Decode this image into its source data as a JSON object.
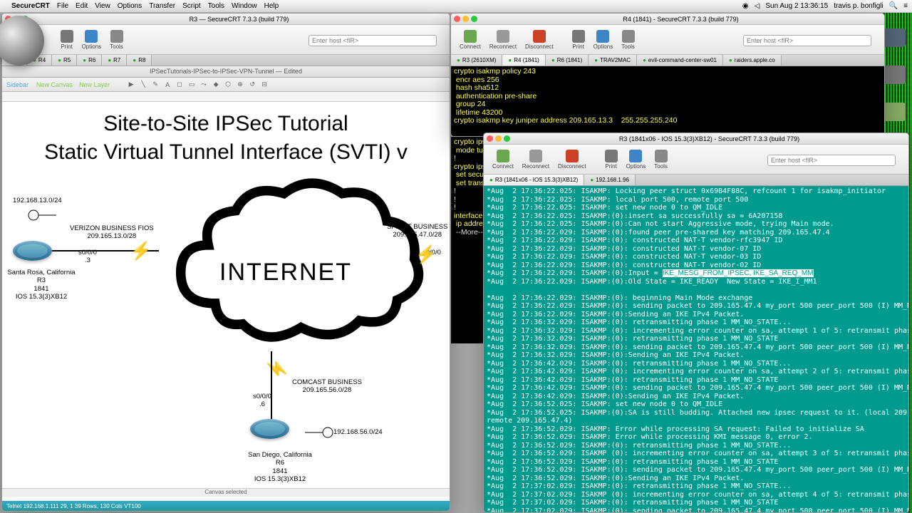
{
  "menubar": {
    "app": "SecureCRT",
    "items": [
      "File",
      "Edit",
      "View",
      "Options",
      "Transfer",
      "Script",
      "Tools",
      "Window",
      "Help"
    ],
    "clock": "Sun Aug 2  13:36:15",
    "user": "travis p. bonfigli"
  },
  "topterm": {
    "title": "R4 (1841) - SecureCRT 7.3.3 (build 779)",
    "toolbar": [
      "Connect",
      "Reconnect",
      "Disconnect",
      "Print",
      "Options",
      "Tools"
    ],
    "host_ph": "Enter host <ﬂR>",
    "tabs": [
      "R3 (2610XM)",
      "R4 (1841)",
      "R6 (1841)",
      "TRAV2MAC",
      "evil-command-center-sw01",
      "raiders.apple.co"
    ],
    "lines": [
      "crypto isakmp policy 243",
      " encr aes 256",
      " hash sha512",
      " authentication pre-share",
      " group 24",
      " lifetime 43200",
      "crypto isakmp key juniper address 209.165.13.3    255.255.255.240"
    ],
    "more": [
      "crypto ipsec transform-set R4_TSET esp-aes 256 esp-sha5",
      " mode tunnel",
      "!",
      "crypto ipsec profile R4_IPSEC_PROFILE",
      " set security-association lifetime seconds 1800",
      " set transform-set R4_TSET",
      "!",
      "!",
      "!",
      "interface Tunnel0",
      " ip address 10.10.10.2 255.255.255.0",
      " --More--"
    ]
  },
  "midterm": {
    "title": "R3 (1841x06 - IOS 15.3(3)XB12) - SecureCRT 7.3.3 (build 779)",
    "toolbar": [
      "Connect",
      "Reconnect",
      "Disconnect",
      "Print",
      "Options",
      "Tools"
    ],
    "host_ph": "Enter host <ﬂR>",
    "tabs": [
      "R3 (1841x06 - IOS 15.3(3)XB12)",
      "192.168.1.96"
    ],
    "log": [
      "*Aug  2 17:36:22.025: ISAKMP: Locking peer struct 0x69B4F88C, refcount 1 for isakmp_initiator",
      "*Aug  2 17:36:22.025: ISAKMP: local port 500, remote port 500",
      "*Aug  2 17:36:22.025: ISAKMP: set new node 0 to QM_IDLE",
      "*Aug  2 17:36:22.025: ISAKMP:(0):insert sa successfully sa = 6A207158",
      "*Aug  2 17:36:22.025: ISAKMP:(0):Can not start Aggressive mode, trying Main mode.",
      "*Aug  2 17:36:22.029: ISAKMP:(0):found peer pre-shared key matching 209.165.47.4",
      "*Aug  2 17:36:22.029: ISAKMP:(0): constructed NAT-T vendor-rfc3947 ID",
      "*Aug  2 17:36:22.029: ISAKMP:(0): constructed NAT-T vendor-07 ID",
      "*Aug  2 17:36:22.029: ISAKMP:(0): constructed NAT-T vendor-03 ID",
      "*Aug  2 17:36:22.029: ISAKMP:(0): constructed NAT-T vendor-02 ID",
      "*Aug  2 17:36:22.029: ISAKMP:(0):Input = ",
      "*Aug  2 17:36:22.029: ISAKMP:(0):Old State = IKE_READY  New State = IKE_I_MM1",
      "",
      "*Aug  2 17:36:22.029: ISAKMP:(0): beginning Main Mode exchange",
      "*Aug  2 17:36:22.029: ISAKMP:(0): sending packet to 209.165.47.4 my_port 500 peer_port 500 (I) MM_NO_STATE",
      "*Aug  2 17:36:22.029: ISAKMP:(0):Sending an IKE IPv4 Packet.",
      "*Aug  2 17:36:32.029: ISAKMP:(0): retransmitting phase 1 MM_NO_STATE...",
      "*Aug  2 17:36:32.029: ISAKMP (0): incrementing error counter on sa, attempt 1 of 5: retransmit phase 1",
      "*Aug  2 17:36:32.029: ISAKMP:(0): retransmitting phase 1 MM_NO_STATE",
      "*Aug  2 17:36:32.029: ISAKMP:(0): sending packet to 209.165.47.4 my_port 500 peer_port 500 (I) MM_NO_STATE",
      "*Aug  2 17:36:32.029: ISAKMP:(0):Sending an IKE IPv4 Packet.",
      "*Aug  2 17:36:42.029: ISAKMP:(0): retransmitting phase 1 MM_NO_STATE...",
      "*Aug  2 17:36:42.029: ISAKMP (0): incrementing error counter on sa, attempt 2 of 5: retransmit phase 1",
      "*Aug  2 17:36:42.029: ISAKMP:(0): retransmitting phase 1 MM_NO_STATE",
      "*Aug  2 17:36:42.029: ISAKMP:(0): sending packet to 209.165.47.4 my_port 500 peer_port 500 (I) MM_NO_STATE",
      "*Aug  2 17:36:42.029: ISAKMP:(0):Sending an IKE IPv4 Packet.",
      "*Aug  2 17:36:52.025: ISAKMP: set new node 0 to QM_IDLE",
      "*Aug  2 17:36:52.025: ISAKMP:(0):SA is still budding. Attached new ipsec request to it. (local 209.165.13.3,",
      "remote 209.165.47.4)",
      "*Aug  2 17:36:52.029: ISAKMP: Error while processing SA request: Failed to initialize SA",
      "*Aug  2 17:36:52.029: ISAKMP: Error while processing KMI message 0, error 2.",
      "*Aug  2 17:36:52.029: ISAKMP:(0): retransmitting phase 1 MM_NO_STATE...",
      "*Aug  2 17:36:52.029: ISAKMP (0): incrementing error counter on sa, attempt 3 of 5: retransmit phase 1",
      "*Aug  2 17:36:52.029: ISAKMP:(0): retransmitting phase 1 MM_NO_STATE",
      "*Aug  2 17:36:52.029: ISAKMP:(0): sending packet to 209.165.47.4 my_port 500 peer_port 500 (I) MM_NO_STATE",
      "*Aug  2 17:36:52.029: ISAKMP:(0):Sending an IKE IPv4 Packet.",
      "*Aug  2 17:37:02.029: ISAKMP:(0): retransmitting phase 1 MM_NO_STATE...",
      "*Aug  2 17:37:02.029: ISAKMP (0): incrementing error counter on sa, attempt 4 of 5: retransmit phase 1",
      "*Aug  2 17:37:02.029: ISAKMP:(0): retransmitting phase 1 MM_NO_STATE",
      "*Aug  2 17:37:02.029: ISAKMP:(0): sending packet to 209.165.47.4 my_port 500 peer_port 500 (I) MM_NO_STATE"
    ],
    "highlight": "IKE_MESG_FROM_IPSEC, IKE_SA_REQ_MM"
  },
  "diag": {
    "title": "R3 — SecureCRT 7.3.3 (build 779)",
    "doc_tab": "IPSecTutorials-IPSec-to-IPSec-VPN-Tunnel — Edited",
    "toolbar": [
      "Disconnect",
      "Print",
      "Options",
      "Tools"
    ],
    "toolbar2": [
      "Sidebar",
      "New Canvas",
      "New Layer"
    ],
    "host_ph": "Enter host <ﬂR>",
    "tabs": [
      "R3",
      "R4",
      "R5",
      "R6",
      "R7",
      "R8"
    ],
    "title1": "Site-to-Site IPSec Tutorial",
    "title2": "Static Virtual Tunnel Interface (SVTI) v",
    "cloud": "INTERNET",
    "r3": {
      "ip": "192.168.13.0/24",
      "isp": "VERIZON BUSINESS FIOS",
      "wan": "209.165.13.0/28",
      "if": "s0/0/0\n.3",
      "loc": "Santa Rosa, California\nR3\n1841\nIOS 15.3(3)XB12"
    },
    "r4": {
      "isp": "SPRINT BUSINESS",
      "wan": "209.165.47.0/28",
      "if": "s0/0/0"
    },
    "r6": {
      "ip": "192.168.56.0/24",
      "isp": "COMCAST BUSINESS",
      "wan": "209.165.56.0/28",
      "if": "s0/0/0\n.6",
      "loc": "San Diego, California\nR6\n1841\nIOS 15.3(3)XB12"
    },
    "status": "Canvas selected",
    "footer": "Telnet  192.168.1.111  29, 1  39 Rows, 130 Cols  VT100"
  },
  "icon_colors": {
    "connect": "#6aa84f",
    "reconnect": "#999",
    "disconnect": "#cc4125",
    "print": "#777",
    "options": "#3d85c6",
    "tools": "#888"
  }
}
